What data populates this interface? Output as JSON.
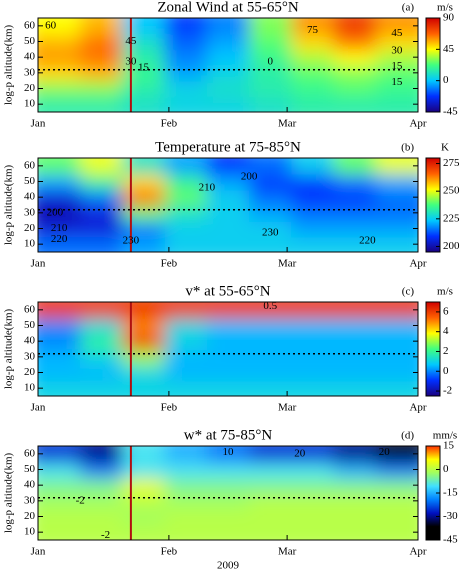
{
  "chart_data": [
    {
      "type": "heatmap",
      "title": "Zonal Wind at 55-65°N",
      "panel_label": "(a)",
      "ylabel": "log-p altitude(km)",
      "xlim": [
        0,
        90
      ],
      "xticks": [
        {
          "value": 0,
          "label": "Jan"
        },
        {
          "value": 31,
          "label": "Feb"
        },
        {
          "value": 59,
          "label": "Mar"
        },
        {
          "value": 90,
          "label": "Apr"
        }
      ],
      "ylim": [
        5,
        65
      ],
      "yticks": [
        10,
        20,
        30,
        40,
        50,
        60
      ],
      "x": [
        5,
        15,
        25,
        35,
        45,
        55,
        65,
        75,
        85
      ],
      "y": [
        10,
        20,
        30,
        40,
        50,
        60
      ],
      "z": [
        [
          15,
          15,
          10,
          5,
          5,
          10,
          15,
          15,
          15
        ],
        [
          30,
          30,
          15,
          5,
          10,
          15,
          20,
          25,
          20
        ],
        [
          50,
          55,
          20,
          -5,
          5,
          15,
          25,
          30,
          25
        ],
        [
          60,
          65,
          15,
          -10,
          0,
          20,
          35,
          45,
          35
        ],
        [
          55,
          65,
          10,
          -15,
          -5,
          25,
          50,
          65,
          50
        ],
        [
          45,
          55,
          0,
          -20,
          -10,
          30,
          60,
          75,
          60
        ]
      ],
      "clim": [
        -45,
        90
      ],
      "colormap": [
        "#1a0080",
        "#0030ff",
        "#00c8ff",
        "#40ff80",
        "#ffff00",
        "#ff6000",
        "#d00000"
      ],
      "colorbar_label": "m/s",
      "colorbar_ticks": [
        90,
        45,
        0,
        -45
      ],
      "contour_labels": [
        "60",
        "45",
        "30",
        "15",
        "0",
        "15",
        "75",
        "45",
        "30",
        "15"
      ],
      "vline_x": 22,
      "hline_y": 32
    },
    {
      "type": "heatmap",
      "title": "Temperature at 75-85°N",
      "panel_label": "(b)",
      "ylabel": "log-p altitude(km)",
      "xlim": [
        0,
        90
      ],
      "xticks": [
        {
          "value": 0,
          "label": "Jan"
        },
        {
          "value": 31,
          "label": "Feb"
        },
        {
          "value": 59,
          "label": "Mar"
        },
        {
          "value": 90,
          "label": "Apr"
        }
      ],
      "ylim": [
        5,
        65
      ],
      "yticks": [
        10,
        20,
        30,
        40,
        50,
        60
      ],
      "x": [
        5,
        15,
        25,
        35,
        45,
        55,
        65,
        75,
        85
      ],
      "y": [
        10,
        20,
        30,
        40,
        50,
        60
      ],
      "z": [
        [
          215,
          215,
          220,
          225,
          225,
          225,
          225,
          225,
          225
        ],
        [
          205,
          205,
          215,
          225,
          225,
          225,
          220,
          220,
          220
        ],
        [
          200,
          205,
          240,
          230,
          225,
          220,
          215,
          215,
          215
        ],
        [
          205,
          215,
          265,
          240,
          225,
          215,
          210,
          210,
          215
        ],
        [
          220,
          235,
          255,
          235,
          220,
          210,
          210,
          215,
          220
        ],
        [
          240,
          250,
          230,
          220,
          210,
          215,
          225,
          240,
          250
        ]
      ],
      "clim": [
        195,
        280
      ],
      "colormap": [
        "#1a0080",
        "#0030ff",
        "#00c8ff",
        "#40ff80",
        "#ffff00",
        "#ff6000",
        "#d00000"
      ],
      "colorbar_label": "K",
      "colorbar_ticks": [
        275,
        250,
        225,
        200
      ],
      "contour_labels": [
        "200",
        "210",
        "220",
        "230",
        "200",
        "210",
        "230",
        "220"
      ],
      "vline_x": 22,
      "hline_y": 32
    },
    {
      "type": "heatmap",
      "title": "v* at 55-65°N",
      "panel_label": "(c)",
      "ylabel": "log-p altitude(km)",
      "xlim": [
        0,
        90
      ],
      "xticks": [
        {
          "value": 0,
          "label": "Jan"
        },
        {
          "value": 31,
          "label": "Feb"
        },
        {
          "value": 59,
          "label": "Mar"
        },
        {
          "value": 90,
          "label": "Apr"
        }
      ],
      "ylim": [
        5,
        65
      ],
      "yticks": [
        10,
        20,
        30,
        40,
        50,
        60
      ],
      "x": [
        5,
        15,
        25,
        35,
        45,
        55,
        65,
        75,
        85
      ],
      "y": [
        10,
        20,
        30,
        40,
        50,
        60
      ],
      "z": [
        [
          1,
          1,
          1,
          1,
          1,
          1,
          1,
          1,
          1
        ],
        [
          0.5,
          0.5,
          1,
          0.5,
          0.5,
          0.5,
          0.5,
          0.5,
          0.5
        ],
        [
          0.5,
          1,
          3,
          0.5,
          0.5,
          0.5,
          0.5,
          0.5,
          0.5
        ],
        [
          0,
          2,
          6,
          1,
          0.5,
          0.5,
          0.5,
          0.5,
          0.5
        ],
        [
          0,
          1,
          5,
          1,
          0.5,
          0.5,
          0.5,
          0.5,
          0.5
        ],
        [
          6,
          6,
          6,
          6,
          6,
          6,
          6,
          6,
          6
        ]
      ],
      "clim": [
        -2.5,
        7
      ],
      "colormap": [
        "#1a0080",
        "#0030ff",
        "#00c8ff",
        "#40ff80",
        "#ffff00",
        "#ff6000",
        "#d00000"
      ],
      "colorbar_label": "m/s",
      "colorbar_ticks": [
        6,
        4,
        2,
        0,
        -2
      ],
      "contour_labels": [
        "0.5"
      ],
      "vline_x": 22,
      "hline_y": 32
    },
    {
      "type": "heatmap",
      "title": "w* at 75-85°N",
      "panel_label": "(d)",
      "ylabel": "log-p altitude(km)",
      "xlabel": "2009",
      "xlim": [
        0,
        90
      ],
      "xticks": [
        {
          "value": 0,
          "label": "Jan"
        },
        {
          "value": 31,
          "label": "Feb"
        },
        {
          "value": 59,
          "label": "Mar"
        },
        {
          "value": 90,
          "label": "Apr"
        }
      ],
      "ylim": [
        5,
        65
      ],
      "yticks": [
        10,
        20,
        30,
        40,
        50,
        60
      ],
      "x": [
        5,
        15,
        25,
        35,
        45,
        55,
        65,
        75,
        85
      ],
      "y": [
        10,
        20,
        30,
        40,
        50,
        60
      ],
      "z": [
        [
          0,
          0,
          0,
          0,
          0,
          0,
          0,
          0,
          0
        ],
        [
          0,
          0,
          -2,
          0,
          0,
          0,
          0,
          0,
          0
        ],
        [
          -2,
          -2,
          0,
          -2,
          -2,
          0,
          0,
          0,
          0
        ],
        [
          -5,
          -5,
          5,
          -5,
          -5,
          -5,
          -5,
          -5,
          -5
        ],
        [
          -10,
          -20,
          -10,
          -10,
          -10,
          -10,
          -10,
          -15,
          -20
        ],
        [
          -25,
          -30,
          -10,
          -15,
          -20,
          -25,
          -25,
          -30,
          -35
        ]
      ],
      "clim": [
        -45,
        15
      ],
      "colormap": [
        "#000000",
        "#000000",
        "#0010c0",
        "#0080ff",
        "#40e0ff",
        "#a0ff60",
        "#ffff00",
        "#ff3000"
      ],
      "colorbar_label": "mm/s",
      "colorbar_ticks": [
        15,
        0,
        -15,
        -30,
        -45
      ],
      "contour_labels": [
        "10",
        "20",
        "20",
        "-2",
        "-2"
      ],
      "vline_x": 22,
      "hline_y": 32
    }
  ]
}
